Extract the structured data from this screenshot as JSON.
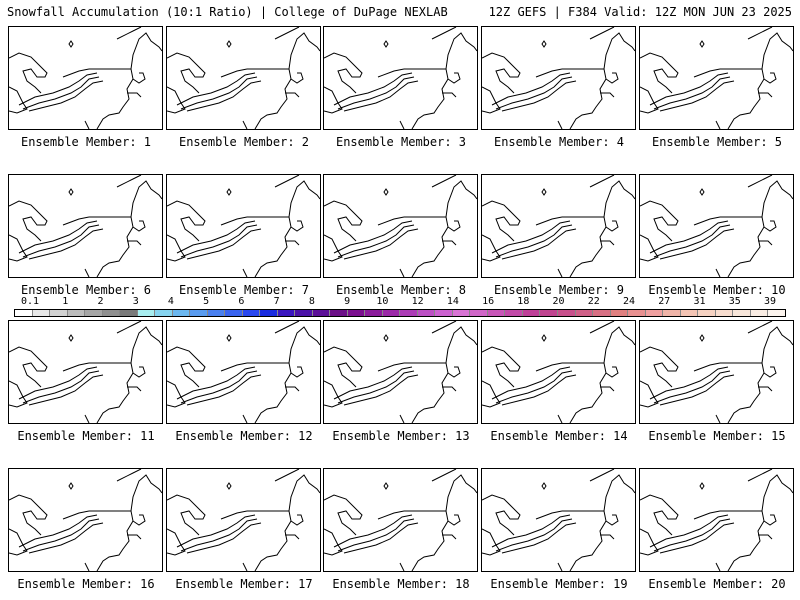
{
  "header": {
    "title_left": "Snowfall Accumulation (10:1 Ratio) | College of DuPage NEXLAB",
    "title_right": "12Z GEFS | F384 Valid: 12Z MON JUN 23 2025"
  },
  "panels": [
    {
      "label": "Ensemble Member: 1"
    },
    {
      "label": "Ensemble Member: 2"
    },
    {
      "label": "Ensemble Member: 3"
    },
    {
      "label": "Ensemble Member: 4"
    },
    {
      "label": "Ensemble Member: 5"
    },
    {
      "label": "Ensemble Member: 6"
    },
    {
      "label": "Ensemble Member: 7"
    },
    {
      "label": "Ensemble Member: 8"
    },
    {
      "label": "Ensemble Member: 9"
    },
    {
      "label": "Ensemble Member: 10"
    },
    {
      "label": "Ensemble Member: 11"
    },
    {
      "label": "Ensemble Member: 12"
    },
    {
      "label": "Ensemble Member: 13"
    },
    {
      "label": "Ensemble Member: 14"
    },
    {
      "label": "Ensemble Member: 15"
    },
    {
      "label": "Ensemble Member: 16"
    },
    {
      "label": "Ensemble Member: 17"
    },
    {
      "label": "Ensemble Member: 18"
    },
    {
      "label": "Ensemble Member: 19"
    },
    {
      "label": "Ensemble Member: 20"
    }
  ],
  "colorbar": {
    "ticks": [
      "0.1",
      "1",
      "2",
      "3",
      "4",
      "5",
      "6",
      "7",
      "8",
      "9",
      "10",
      "12",
      "14",
      "16",
      "18",
      "20",
      "22",
      "24",
      "27",
      "31",
      "35",
      "39"
    ],
    "colors": [
      "#ffffff",
      "#e8e8e8",
      "#d2d2d2",
      "#bcbcbc",
      "#a6a6a6",
      "#909090",
      "#7a7a7a",
      "#a8eef0",
      "#86d4f0",
      "#6cb8f0",
      "#5a9cf0",
      "#4a80f0",
      "#3a64f0",
      "#2a48f0",
      "#1a2ce0",
      "#3b16c0",
      "#4c12a8",
      "#5c1098",
      "#6c1088",
      "#7c1090",
      "#8c1c9c",
      "#9c2aa8",
      "#ac3cb6",
      "#bc50c4",
      "#cc62d0",
      "#d874d4",
      "#d066c8",
      "#c856b8",
      "#c24aa8",
      "#be4098",
      "#c04490",
      "#c8508c",
      "#d06088",
      "#d87084",
      "#e08080",
      "#e89090",
      "#f0a0a0",
      "#f0b4a8",
      "#f4c4b4",
      "#f6d2c2",
      "#f8ddcf",
      "#f8e6da",
      "#faede4",
      "#fcf4ee"
    ]
  }
}
